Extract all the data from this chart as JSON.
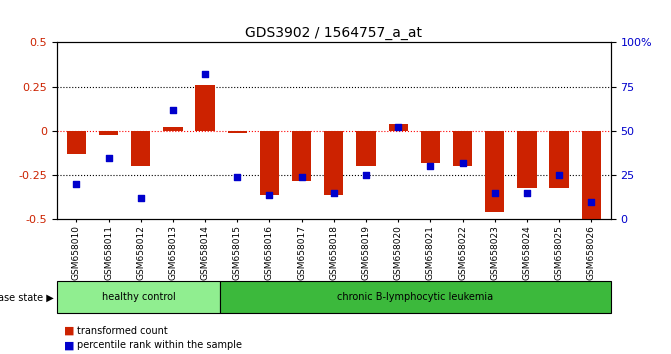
{
  "title": "GDS3902 / 1564757_a_at",
  "samples": [
    "GSM658010",
    "GSM658011",
    "GSM658012",
    "GSM658013",
    "GSM658014",
    "GSM658015",
    "GSM658016",
    "GSM658017",
    "GSM658018",
    "GSM658019",
    "GSM658020",
    "GSM658021",
    "GSM658022",
    "GSM658023",
    "GSM658024",
    "GSM658025",
    "GSM658026"
  ],
  "red_values": [
    -0.13,
    -0.02,
    -0.2,
    0.02,
    0.26,
    -0.01,
    -0.36,
    -0.28,
    -0.36,
    -0.2,
    0.04,
    -0.18,
    -0.2,
    -0.46,
    -0.32,
    -0.32,
    -0.5
  ],
  "blue_values": [
    20,
    35,
    12,
    62,
    82,
    24,
    14,
    24,
    15,
    25,
    52,
    30,
    32,
    15,
    15,
    25,
    10
  ],
  "group1_label": "healthy control",
  "group1_count": 5,
  "group2_label": "chronic B-lymphocytic leukemia",
  "group2_count": 12,
  "group1_color": "#90EE90",
  "group2_color": "#3CB93C",
  "disease_state_label": "disease state",
  "legend_red": "transformed count",
  "legend_blue": "percentile rank within the sample",
  "ylim_left": [
    -0.5,
    0.5
  ],
  "ylim_right": [
    0,
    100
  ],
  "yticks_left": [
    -0.5,
    -0.25,
    0.0,
    0.25,
    0.5
  ],
  "yticks_right": [
    0,
    25,
    50,
    75,
    100
  ],
  "red_color": "#CC2200",
  "blue_color": "#0000CC",
  "bar_width": 0.6
}
